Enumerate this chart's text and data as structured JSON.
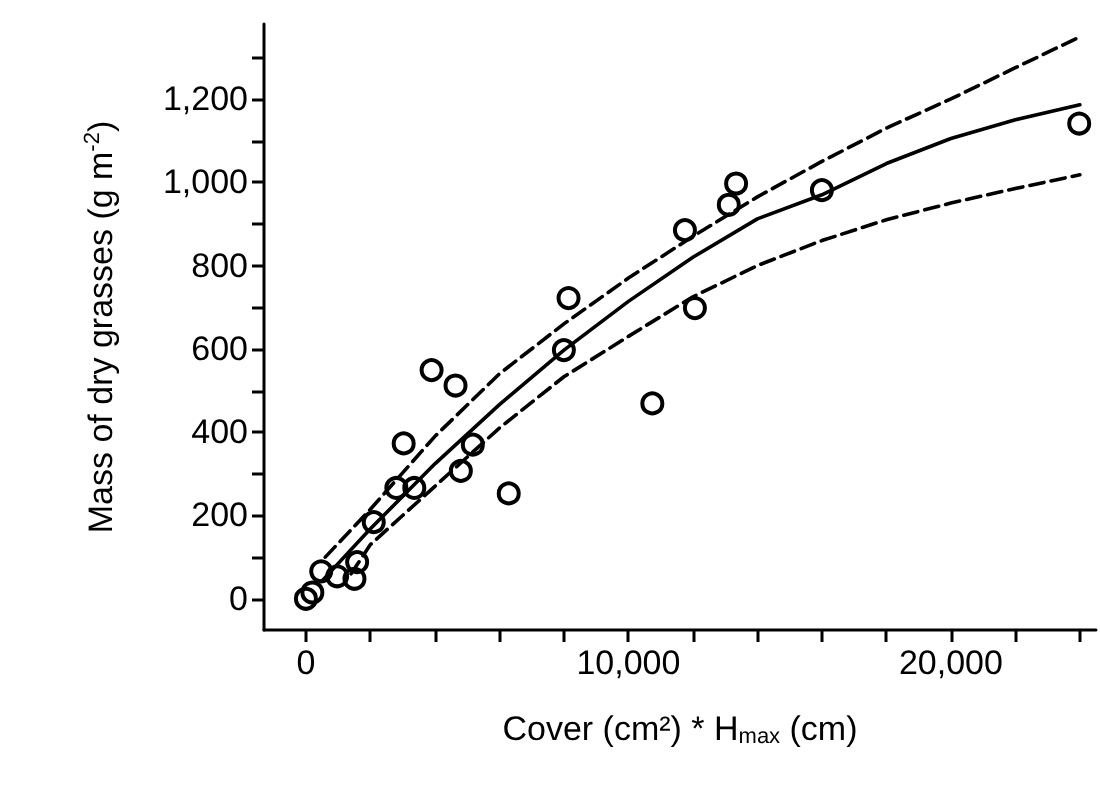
{
  "chart_data": {
    "type": "scatter",
    "xlabel": "Cover (cm²) * H$_{max}$ (cm)",
    "ylabel": "Mass of dry grasses (g m$^{-2}$)",
    "xlim": [
      -1300,
      24500
    ],
    "ylim": [
      -75,
      1380
    ],
    "xticks": [
      {
        "value": 0,
        "label": "0"
      },
      {
        "value": 2000,
        "label": null
      },
      {
        "value": 4000,
        "label": null
      },
      {
        "value": 6000,
        "label": null
      },
      {
        "value": 8000,
        "label": null
      },
      {
        "value": 10000,
        "label": "10,000"
      },
      {
        "value": 12000,
        "label": null
      },
      {
        "value": 14000,
        "label": null
      },
      {
        "value": 16000,
        "label": null
      },
      {
        "value": 18000,
        "label": null
      },
      {
        "value": 20000,
        "label": "20,000"
      },
      {
        "value": 22000,
        "label": null
      },
      {
        "value": 24000,
        "label": null
      }
    ],
    "yticks": [
      {
        "value": 0,
        "label": "0"
      },
      {
        "value": 100,
        "label": null
      },
      {
        "value": 200,
        "label": "200"
      },
      {
        "value": 300,
        "label": null
      },
      {
        "value": 400,
        "label": "400"
      },
      {
        "value": 500,
        "label": null
      },
      {
        "value": 600,
        "label": "600"
      },
      {
        "value": 700,
        "label": null
      },
      {
        "value": 800,
        "label": "800"
      },
      {
        "value": 900,
        "label": null
      },
      {
        "value": 1000,
        "label": "1,000"
      },
      {
        "value": 1100,
        "label": null
      },
      {
        "value": 1200,
        "label": "1,200"
      },
      {
        "value": 1300,
        "label": null
      }
    ],
    "grid": false,
    "series": [
      {
        "color": "#000000",
        "marker": "circle",
        "x": [
          0,
          200,
          474,
          969,
          1505,
          1588,
          2103,
          2804,
          3361,
          3031,
          3897,
          4639,
          4804,
          5175,
          6289,
          7999,
          8144,
          10742,
          11753,
          12062,
          13113,
          13340,
          16000,
          23979
        ],
        "values": [
          0,
          15,
          66,
          54,
          48,
          88,
          184,
          266,
          266,
          373,
          549,
          512,
          307,
          370,
          253,
          597,
          722,
          469,
          885,
          698,
          946,
          997,
          981,
          1141
        ]
      },
      {
        "type": "line",
        "color": "#000000",
        "marker": "none",
        "line_style": "solid",
        "x": [
          500,
          2000,
          4000,
          6000,
          8000,
          10000,
          12000,
          14000,
          16000,
          18000,
          20000,
          22000,
          24000
        ],
        "values": [
          43,
          168,
          324,
          466,
          597,
          714,
          820,
          912,
          970,
          1045,
          1105,
          1150,
          1186
        ]
      },
      {
        "type": "line",
        "color": "#000000",
        "marker": "none",
        "line_style": "dashed",
        "x": [
          600,
          2000,
          4000,
          6000,
          8000,
          10000,
          12000,
          14000,
          16000,
          18000,
          20000,
          22000,
          24000
        ],
        "values": [
          100,
          215,
          390,
          540,
          660,
          770,
          870,
          965,
          1050,
          1130,
          1200,
          1275,
          1349
        ]
      },
      {
        "type": "line",
        "color": "#000000",
        "marker": "none",
        "line_style": "dashed",
        "x": [
          1400,
          2000,
          4000,
          6000,
          8000,
          10000,
          12000,
          14000,
          16000,
          18000,
          20000,
          22000,
          24000
        ],
        "values": [
          60,
          130,
          270,
          410,
          533,
          630,
          725,
          800,
          860,
          910,
          950,
          985,
          1018
        ]
      }
    ]
  }
}
